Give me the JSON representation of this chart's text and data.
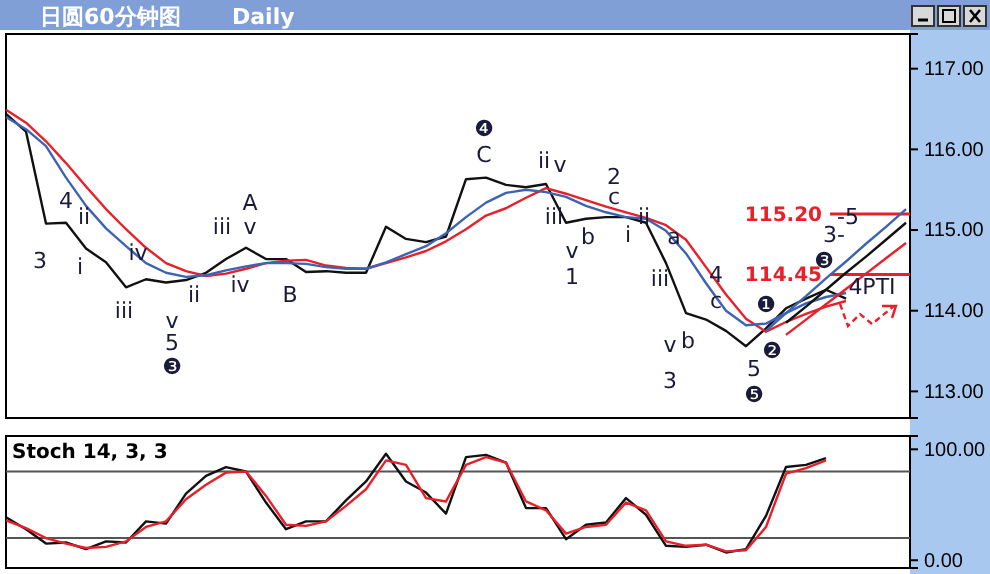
{
  "chart_data": [
    {
      "type": "line",
      "title": "日圆60分钟图",
      "subtitle": "Daily",
      "categories": [
        null,
        null,
        null,
        null,
        null,
        null,
        null,
        null,
        null,
        null,
        null,
        null,
        null,
        null,
        null,
        null,
        null,
        null,
        null,
        null,
        null,
        null,
        null,
        null,
        null,
        null,
        null,
        null,
        null,
        null,
        null,
        null,
        null,
        null,
        null,
        null,
        null,
        null,
        null,
        null,
        null,
        null,
        null,
        null,
        null,
        null
      ],
      "ylim": [
        112.67,
        117.43
      ],
      "yticks": [
        {
          "value": 113,
          "label": "113.00"
        },
        {
          "value": 114,
          "label": "114.00"
        },
        {
          "value": 115,
          "label": "115.00"
        },
        {
          "value": 116,
          "label": "116.00"
        },
        {
          "value": 117,
          "label": "117.00"
        }
      ],
      "tick_labels": "y",
      "series": [
        {
          "color": "#111111",
          "values": [
            116.44,
            116.22,
            115.08,
            115.09,
            114.77,
            114.6,
            114.29,
            114.39,
            114.35,
            114.38,
            114.47,
            114.64,
            114.78,
            114.64,
            114.64,
            114.48,
            114.49,
            114.47,
            114.47,
            115.04,
            114.89,
            114.85,
            114.92,
            115.63,
            115.65,
            115.56,
            115.53,
            115.57,
            115.09,
            115.14,
            115.16,
            115.16,
            115.09,
            114.59,
            113.97,
            113.89,
            113.75,
            113.56,
            113.78,
            114.03,
            114.15,
            114.26,
            114.15,
            null,
            null,
            null
          ]
        },
        {
          "color": "#e8202a",
          "values": [
            116.49,
            116.33,
            116.1,
            115.83,
            115.54,
            115.26,
            115.01,
            114.78,
            114.59,
            114.49,
            114.43,
            114.46,
            114.52,
            114.59,
            114.62,
            114.63,
            114.56,
            114.53,
            114.52,
            114.59,
            114.66,
            114.74,
            114.86,
            115.01,
            115.18,
            115.27,
            115.4,
            115.52,
            115.45,
            115.37,
            115.29,
            115.22,
            115.15,
            115.06,
            114.88,
            114.54,
            114.2,
            113.9,
            113.74,
            113.86,
            113.96,
            114.05,
            114.12,
            null,
            null,
            null
          ]
        },
        {
          "color": "#3c64b4",
          "values": [
            116.4,
            116.25,
            116.04,
            115.65,
            115.3,
            115.02,
            114.8,
            114.59,
            114.47,
            114.42,
            114.44,
            114.5,
            114.55,
            114.59,
            114.59,
            114.58,
            114.54,
            114.52,
            114.52,
            114.6,
            114.7,
            114.8,
            114.96,
            115.16,
            115.34,
            115.46,
            115.5,
            115.47,
            115.41,
            115.3,
            115.22,
            115.16,
            115.14,
            114.99,
            114.71,
            114.34,
            114.0,
            113.82,
            113.84,
            113.97,
            114.09,
            114.17,
            114.22,
            null,
            null,
            null
          ]
        },
        {
          "color": "#111111",
          "values": [
            null,
            null,
            null,
            null,
            null,
            null,
            null,
            null,
            null,
            null,
            null,
            null,
            null,
            null,
            null,
            null,
            null,
            null,
            null,
            null,
            null,
            null,
            null,
            null,
            null,
            null,
            null,
            null,
            null,
            null,
            null,
            null,
            null,
            null,
            null,
            null,
            null,
            null,
            null,
            113.85,
            114.05,
            114.26,
            114.47,
            114.67,
            114.88,
            115.09
          ]
        },
        {
          "color": "#3c64b4",
          "values": [
            null,
            null,
            null,
            null,
            null,
            null,
            null,
            null,
            null,
            null,
            null,
            null,
            null,
            null,
            null,
            null,
            null,
            null,
            null,
            null,
            null,
            null,
            null,
            null,
            null,
            null,
            null,
            null,
            null,
            null,
            null,
            null,
            null,
            null,
            null,
            null,
            null,
            null,
            113.75,
            113.97,
            114.18,
            114.4,
            114.61,
            114.83,
            115.04,
            115.26
          ]
        },
        {
          "color": "#e8202a",
          "values": [
            null,
            null,
            null,
            null,
            null,
            null,
            null,
            null,
            null,
            null,
            null,
            null,
            null,
            null,
            null,
            null,
            null,
            null,
            null,
            null,
            null,
            null,
            null,
            null,
            null,
            null,
            null,
            null,
            null,
            null,
            null,
            null,
            null,
            null,
            null,
            null,
            null,
            null,
            null,
            113.7,
            113.89,
            114.08,
            114.27,
            114.46,
            114.65,
            114.84
          ]
        }
      ],
      "ref_lines": [
        {
          "axis": "y",
          "value": 115.2,
          "label": "115.20",
          "color": "#e8202a"
        },
        {
          "axis": "y",
          "value": 114.45,
          "label": "114.45",
          "color": "#e8202a"
        }
      ],
      "annotations": [
        "3",
        "4",
        "ii",
        "i",
        "iii",
        "iv",
        "v",
        "5",
        "❸",
        "ii",
        "iii",
        "v",
        "A",
        "iv",
        "B",
        "❹",
        "C",
        "ii",
        "v",
        "iii",
        "v",
        "1",
        "b",
        "2",
        "c",
        "i",
        "ii",
        "a",
        "iii",
        "4",
        "c",
        "v",
        "b",
        "3",
        "5",
        "❺",
        "❶",
        "❷",
        "❸",
        "3-",
        "-5",
        "4PTI"
      ]
    },
    {
      "type": "line",
      "title": "Stoch 14, 3, 3",
      "categories": [
        null,
        null,
        null,
        null,
        null,
        null,
        null,
        null,
        null,
        null,
        null,
        null,
        null,
        null,
        null,
        null,
        null,
        null,
        null,
        null,
        null,
        null,
        null,
        null,
        null,
        null,
        null,
        null,
        null,
        null,
        null,
        null,
        null,
        null,
        null,
        null,
        null,
        null,
        null,
        null,
        null,
        null,
        null,
        null,
        null,
        null
      ],
      "ylim": [
        -7,
        112
      ],
      "yticks": [
        {
          "value": 0,
          "label": "0.00"
        },
        {
          "value": 100,
          "label": "100.00"
        }
      ],
      "tick_labels": "y",
      "series": [
        {
          "color": "#111111",
          "values": [
            38.7,
            28,
            15,
            16,
            10,
            17,
            16,
            35,
            33,
            60,
            76,
            84,
            80,
            52,
            28,
            35,
            35,
            54,
            71,
            96,
            71,
            61,
            42,
            93,
            95,
            88,
            47,
            47,
            19,
            32,
            34,
            56,
            41,
            13,
            12,
            14,
            7,
            10,
            40,
            84,
            86,
            92,
            null,
            null,
            null,
            null
          ]
        },
        {
          "color": "#e8202a",
          "values": [
            36,
            29,
            20,
            15,
            11,
            12,
            17,
            30,
            35,
            55,
            68,
            79,
            80,
            58,
            32,
            31,
            35,
            49,
            64,
            90,
            86,
            56,
            53,
            86,
            93,
            88,
            53,
            45,
            24,
            30,
            32,
            52,
            45,
            17,
            13,
            14,
            8,
            9,
            30,
            78,
            83,
            90,
            null,
            null,
            null,
            null
          ]
        }
      ],
      "ref_lines": [
        {
          "axis": "y",
          "value": 80,
          "color": "#555555"
        },
        {
          "axis": "y",
          "value": 20,
          "color": "#555555"
        }
      ]
    }
  ]
}
